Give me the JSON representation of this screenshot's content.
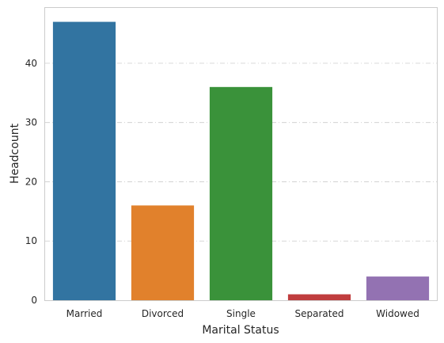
{
  "chart_data": {
    "type": "bar",
    "title": "",
    "xlabel": "Marital Status",
    "ylabel": "Headcount",
    "categories": [
      "Married",
      "Divorced",
      "Single",
      "Separated",
      "Widowed"
    ],
    "values": [
      47,
      16,
      36,
      1,
      4
    ],
    "colors": [
      "#3274a1",
      "#e1812c",
      "#3a923a",
      "#c03d3e",
      "#9372b2"
    ],
    "ylim": [
      0,
      49.35
    ],
    "yticks": [
      0,
      10,
      20,
      30,
      40
    ],
    "grid": "y-axis dash-dot",
    "legend": "none"
  }
}
